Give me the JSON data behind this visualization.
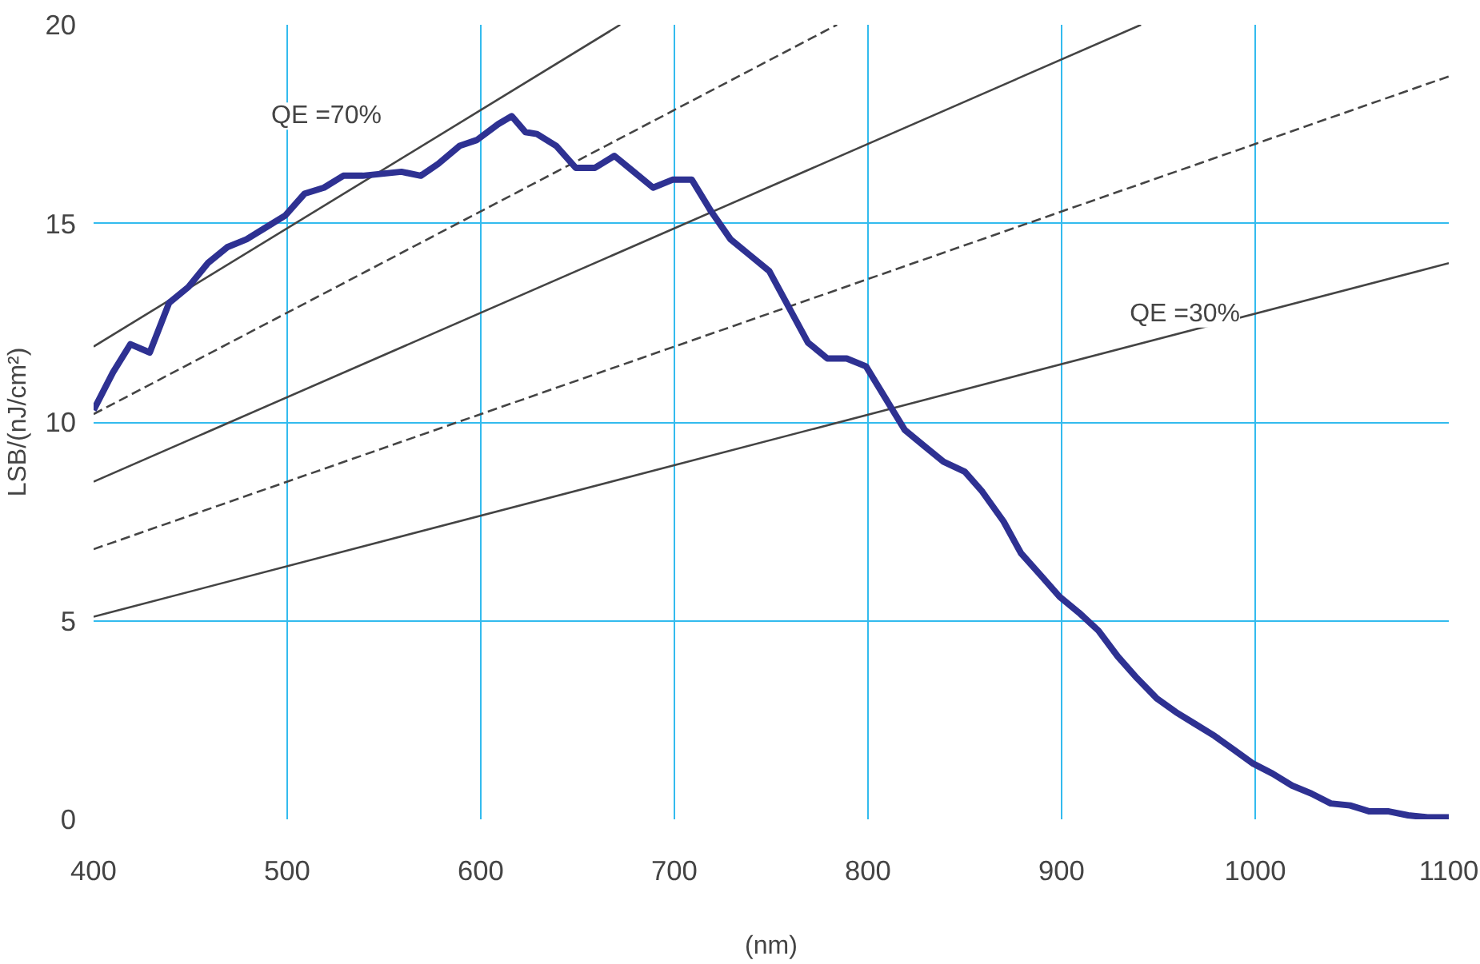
{
  "chart_data": {
    "type": "line",
    "xlabel": "(nm)",
    "ylabel": "LSB/(nJ/cm²)",
    "xlim": [
      400,
      1100
    ],
    "ylim": [
      0,
      20
    ],
    "xticks": [
      400,
      500,
      600,
      700,
      800,
      900,
      1000,
      1100
    ],
    "yticks": [
      0,
      5,
      10,
      15,
      20
    ],
    "grid": true,
    "series": [
      {
        "color": "#444444",
        "line_style": "solid",
        "x": [
          400,
          672
        ],
        "values": [
          11.9,
          20
        ]
      },
      {
        "color": "#444444",
        "line_style": "dashed",
        "x": [
          400,
          784
        ],
        "values": [
          10.2,
          20
        ]
      },
      {
        "color": "#444444",
        "line_style": "solid",
        "x": [
          400,
          941
        ],
        "values": [
          8.5,
          20
        ]
      },
      {
        "color": "#444444",
        "line_style": "dashed",
        "x": [
          400,
          1100
        ],
        "values": [
          6.8,
          18.7
        ]
      },
      {
        "color": "#444444",
        "line_style": "solid",
        "x": [
          400,
          1100
        ],
        "values": [
          5.1,
          14.0
        ]
      },
      {
        "color": "#2e3192",
        "line_style": "solid",
        "x": [
          400,
          410,
          419,
          429,
          439,
          449,
          459,
          469,
          479,
          489,
          499,
          509,
          519,
          529,
          539,
          549,
          559,
          569,
          578,
          589,
          598,
          609,
          616,
          623,
          629,
          639,
          649,
          659,
          669,
          679,
          689,
          699,
          709,
          719,
          729,
          739,
          749,
          759,
          769,
          779,
          789,
          799,
          809,
          819,
          829,
          839,
          850,
          859,
          870,
          879,
          890,
          899,
          909,
          919,
          929,
          939,
          949,
          959,
          969,
          979,
          989,
          999,
          1009,
          1019,
          1029,
          1039,
          1049,
          1059,
          1069,
          1079,
          1089,
          1100
        ],
        "values": [
          10.3,
          11.25,
          11.96,
          11.75,
          13.0,
          13.4,
          14.0,
          14.4,
          14.6,
          14.9,
          15.2,
          15.75,
          15.9,
          16.2,
          16.2,
          16.25,
          16.3,
          16.2,
          16.5,
          16.95,
          17.1,
          17.5,
          17.7,
          17.3,
          17.25,
          16.95,
          16.4,
          16.4,
          16.7,
          16.3,
          15.9,
          16.1,
          16.1,
          15.3,
          14.6,
          14.2,
          13.8,
          12.9,
          12.0,
          11.6,
          11.6,
          11.4,
          10.6,
          9.8,
          9.4,
          9.0,
          8.75,
          8.25,
          7.5,
          6.7,
          6.1,
          5.6,
          5.2,
          4.75,
          4.1,
          3.55,
          3.05,
          2.7,
          2.4,
          2.1,
          1.75,
          1.4,
          1.15,
          0.85,
          0.65,
          0.4,
          0.35,
          0.2,
          0.2,
          0.1,
          0.05,
          0.05
        ]
      }
    ],
    "annotations": [
      "QE =70%",
      "QE =30%"
    ]
  }
}
